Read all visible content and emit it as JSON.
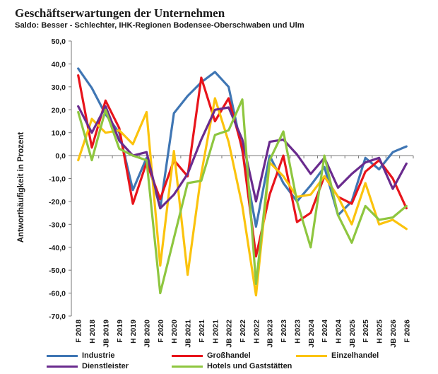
{
  "header": {
    "title": "Geschäftserwartungen der Unternehmen",
    "subtitle": "Saldo: Besser - Schlechter, IHK-Regionen Bodensee-Oberschwaben und Ulm"
  },
  "chart_data": {
    "type": "line",
    "ylabel": "Antworthäufigkeit in Prozent",
    "xlabel": "",
    "ylim": [
      -70,
      50
    ],
    "yticks": [
      "50,0",
      "40,0",
      "30,0",
      "20,0",
      "10,0",
      "0,0",
      "-10,0",
      "-20,0",
      "-30,0",
      "-40,0",
      "-50,0",
      "-60,0",
      "-70,0"
    ],
    "categories": [
      "F 2018",
      "H 2018",
      "JB 2019",
      "F 2019",
      "H 2019",
      "JB 2020",
      "F 2020",
      "H 2020",
      "JB 2021",
      "F 2021",
      "H 2021",
      "JB 2022",
      "F 2022",
      "H 2022",
      "JB 2023",
      "F 2023",
      "H 2023",
      "JB 2024",
      "F 2024",
      "H 2024",
      "JB 2025",
      "F 2025",
      "H 2025",
      "JB 2026",
      "F 2026"
    ],
    "grid": false,
    "legend_position": "bottom",
    "series": [
      {
        "name": "Industrie",
        "color": "#3f76b4",
        "values": [
          38,
          29.5,
          18,
          10,
          -15,
          -1,
          -23,
          18.5,
          26,
          32,
          36.5,
          30,
          2,
          -31,
          0,
          -12,
          -20,
          -13,
          -5,
          -26,
          -20,
          -1,
          -6,
          1.5,
          4
        ]
      },
      {
        "name": "Großhandel",
        "color": "#e8141b",
        "values": [
          35,
          3.5,
          24,
          12,
          -21,
          -3,
          -19,
          -2,
          -9,
          34,
          15,
          25,
          3,
          -44,
          -17,
          0,
          -29,
          -25,
          -9,
          -18,
          -21,
          -7,
          -2,
          -10,
          -23
        ]
      },
      {
        "name": "Einzelhandel",
        "color": "#fbc30d",
        "values": [
          -2,
          16,
          10,
          11,
          5,
          19,
          -48,
          2,
          -52,
          -8,
          25,
          6,
          -22,
          -61,
          -3,
          -9,
          -18,
          -17,
          -9,
          -18,
          -30,
          -12,
          -30,
          -28,
          -32
        ]
      },
      {
        "name": "Dienstleister",
        "color": "#6a2b8e",
        "values": [
          21.5,
          10,
          21.5,
          6.5,
          0,
          1.5,
          -23,
          -17,
          -8,
          7,
          20,
          21,
          7,
          -20,
          6,
          7,
          0.5,
          -8,
          -1,
          -14,
          -8,
          -3,
          -1,
          -14.5,
          -3.5
        ]
      },
      {
        "name": "Hotels und Gaststätten",
        "color": "#8ec63f",
        "values": [
          19,
          -2,
          20,
          3,
          0,
          -2,
          -60,
          -36,
          -12,
          -11,
          9,
          11,
          24.5,
          -56,
          -2,
          10.5,
          -20,
          -40,
          0,
          -26,
          -38,
          -22,
          -28,
          -27,
          -22
        ]
      }
    ]
  }
}
